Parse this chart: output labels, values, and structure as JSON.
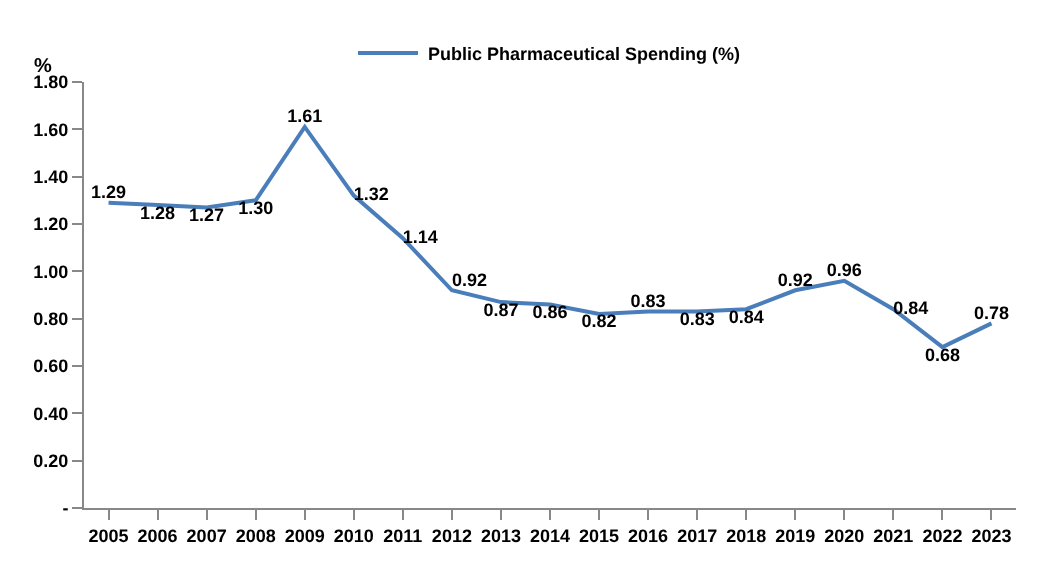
{
  "chart_data": {
    "type": "line",
    "ylabel": "%",
    "legend": "top",
    "marker": "none",
    "line_style": "solid",
    "categories": [
      "2005",
      "2006",
      "2007",
      "2008",
      "2009",
      "2010",
      "2011",
      "2012",
      "2013",
      "2014",
      "2015",
      "2016",
      "2017",
      "2018",
      "2019",
      "2020",
      "2021",
      "2022",
      "2023"
    ],
    "series": [
      {
        "name": "Public Pharmaceutical Spending (%)",
        "color": "#4a7ebb",
        "values": [
          1.29,
          1.28,
          1.27,
          1.3,
          1.61,
          1.32,
          1.14,
          0.92,
          0.87,
          0.86,
          0.82,
          0.83,
          0.83,
          0.84,
          0.92,
          0.96,
          0.84,
          0.68,
          0.78
        ],
        "value_labels": [
          "1.29",
          "1.28",
          "1.27",
          "1.30",
          "1.61",
          "1.32",
          "1.14",
          "0.92",
          "0.87",
          "0.86",
          "0.82",
          "0.83",
          "0.83",
          "0.84",
          "0.92",
          "0.96",
          "0.84",
          "0.68",
          "0.78"
        ]
      }
    ],
    "ylim": [
      0,
      1.8
    ],
    "yticks": [
      {
        "value": 0,
        "label": "-"
      },
      {
        "value": 0.2,
        "label": "0.20"
      },
      {
        "value": 0.4,
        "label": "0.40"
      },
      {
        "value": 0.6,
        "label": "0.60"
      },
      {
        "value": 0.8,
        "label": "0.80"
      },
      {
        "value": 1.0,
        "label": "1.00"
      },
      {
        "value": 1.2,
        "label": "1.20"
      },
      {
        "value": 1.4,
        "label": "1.40"
      },
      {
        "value": 1.6,
        "label": "1.60"
      },
      {
        "value": 1.8,
        "label": "1.80"
      }
    ]
  }
}
